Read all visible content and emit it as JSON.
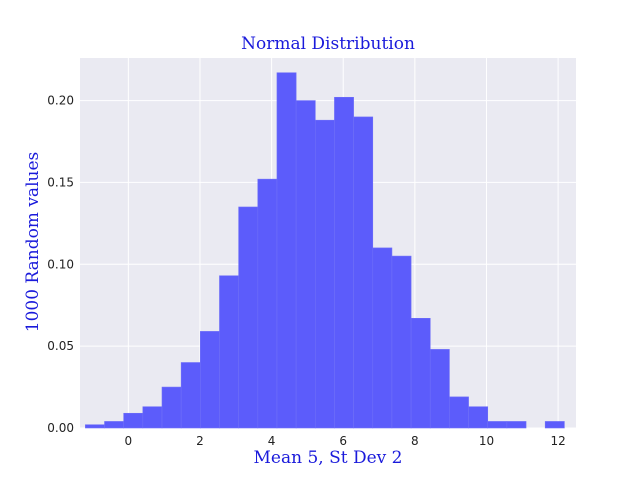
{
  "chart_data": {
    "type": "bar",
    "title": "Normal Distribution",
    "xlabel": "Mean 5, St Dev 2",
    "ylabel": "1000 Random values",
    "xlim": [
      -1.35,
      12.5
    ],
    "ylim": [
      0,
      0.226
    ],
    "xticks": [
      0,
      2,
      4,
      6,
      8,
      10,
      12
    ],
    "yticks": [
      0.0,
      0.05,
      0.1,
      0.15,
      0.2
    ],
    "ytick_labels": [
      "0.00",
      "0.05",
      "0.10",
      "0.15",
      "0.20"
    ],
    "grid": true,
    "bin_width": 0.535,
    "bin_start": -1.2,
    "values": [
      0.002,
      0.004,
      0.009,
      0.013,
      0.025,
      0.04,
      0.059,
      0.093,
      0.135,
      0.152,
      0.217,
      0.2,
      0.188,
      0.202,
      0.19,
      0.11,
      0.105,
      0.067,
      0.048,
      0.019,
      0.013,
      0.004,
      0.004,
      0.0,
      0.004
    ],
    "colors": {
      "bar": "#5c5cfb",
      "background": "#eaeaf2",
      "title": "#1a1adb"
    }
  }
}
